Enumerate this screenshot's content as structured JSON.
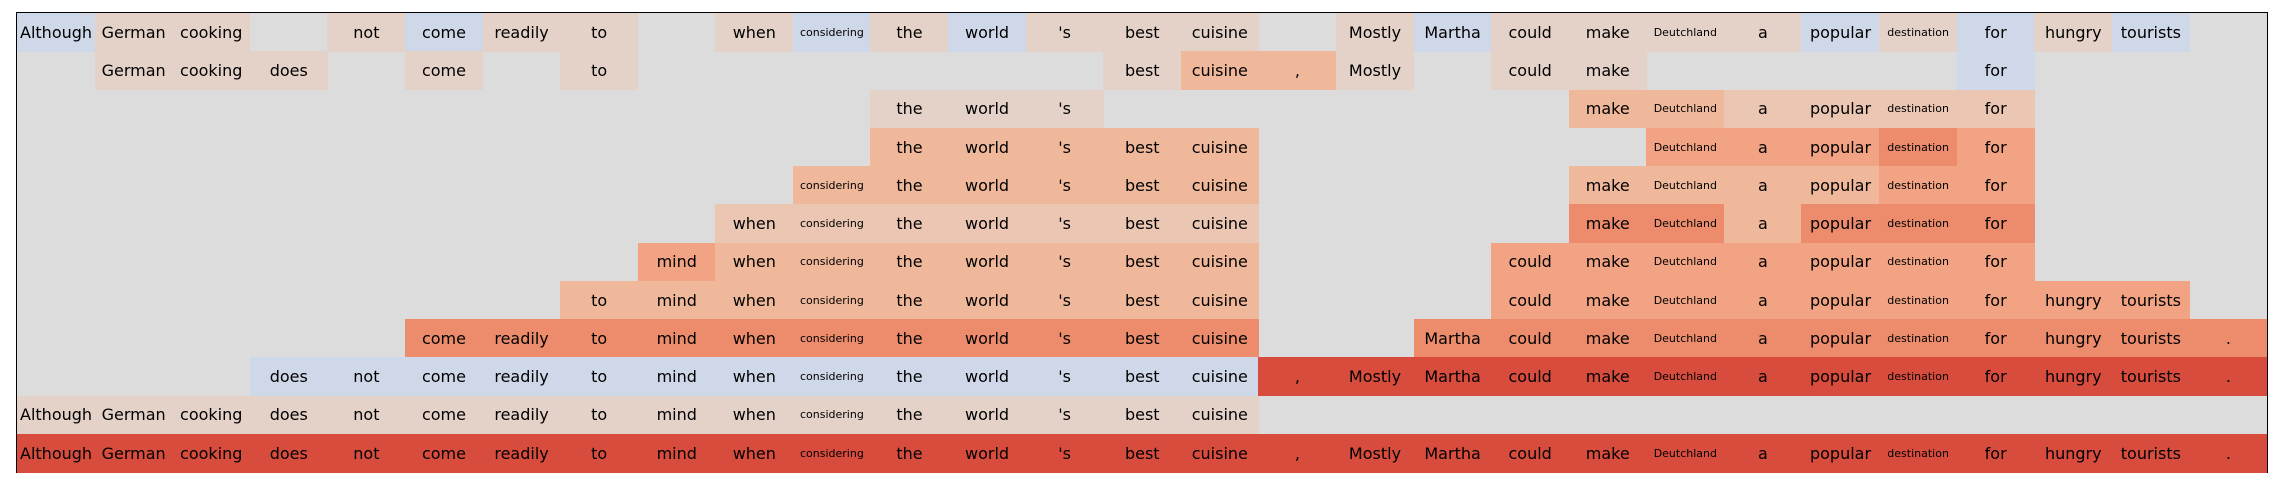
{
  "tokens": [
    "Although",
    "German",
    "cooking",
    "does",
    "not",
    "come",
    "readily",
    "to",
    "mind",
    "when",
    "considering",
    "the",
    "world",
    "'s",
    "best",
    "cuisine",
    ",",
    "Mostly",
    "Martha",
    "could",
    "make",
    "Deutchland",
    "a",
    "popular",
    "destination",
    "for",
    "hungry",
    "tourists",
    "."
  ],
  "palette": {
    "0": "#dcdcdc",
    "n": "#cfd8e8",
    "1": "#e4d2c8",
    "2": "#ebc6b3",
    "3": "#f0b89b",
    "4": "#f2a383",
    "5": "#ec8c6c",
    "6": "#e6725a",
    "7": "#d84c3e"
  },
  "rows": [
    "n1101n1101n1n11101n1111n1n1n0",
    "0111010100000013310110000n0000",
    "00000000000111000000332222000",
    "00000000000333330000044454000",
    "00000000003333330000333344000",
    "00000000022222220000553555000",
    "00000000433333330004444444000",
    "00000003333333330004444444440",
    "00000555555555550055555555555",
    "000nnnnnnnnnnnnn7777777777777",
    "11111111111111110000000000000",
    "77777777777777777777777777777"
  ]
}
